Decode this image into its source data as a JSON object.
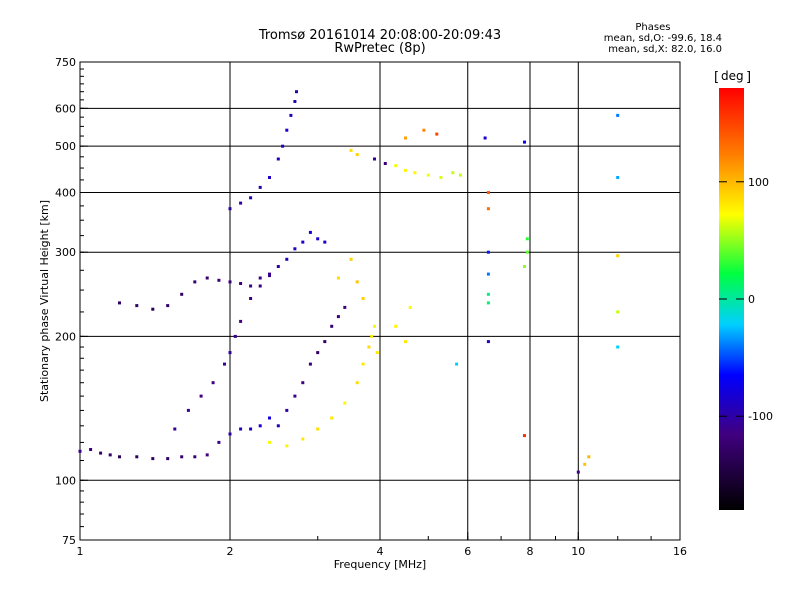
{
  "header": {
    "title_line1": "Tromsø 20161014 20:08:00-20:09:43",
    "title_line2": "RwPretec (8p)",
    "phases_title": "Phases",
    "phases_o": "mean, sd,O: -99.6, 18.4",
    "phases_x": "mean, sd,X:  82.0, 16.0"
  },
  "colorbar": {
    "label": "deg",
    "ticks": [
      {
        "value": 100,
        "label": "100"
      },
      {
        "value": 0,
        "label": "0"
      },
      {
        "value": -100,
        "label": "-100"
      }
    ],
    "range": [
      -180,
      180
    ]
  },
  "chart_data": {
    "type": "scatter",
    "title": "Tromsø 20161014 20:08:00-20:09:43",
    "subtitle": "RwPretec (8p)",
    "xlabel": "Frequency [MHz]",
    "ylabel": "Stationary phase Virtual Height [km]",
    "xscale": "log",
    "yscale": "log",
    "xlim": [
      1,
      16
    ],
    "ylim": [
      75,
      750
    ],
    "x_ticks": [
      1,
      2,
      4,
      6,
      8,
      10,
      16
    ],
    "x_tick_labels": [
      "1",
      "2",
      "4",
      "6",
      "8",
      "10",
      "16"
    ],
    "y_ticks": [
      75,
      100,
      200,
      300,
      400,
      500,
      600,
      750
    ],
    "y_tick_labels": [
      "75",
      "100",
      "200",
      "300",
      "400",
      "500",
      "600",
      "750"
    ],
    "x_grid": [
      2,
      4,
      6,
      8,
      10
    ],
    "y_grid": [
      100,
      200,
      300,
      400,
      500,
      600
    ],
    "color_scale": "phase [deg], -180 to 180",
    "series": [
      {
        "values": [
          [
            1.0,
            115,
            -110
          ],
          [
            1.05,
            116,
            -120
          ],
          [
            1.1,
            114,
            -125
          ],
          [
            1.15,
            113,
            -130
          ],
          [
            1.2,
            112,
            -135
          ],
          [
            1.3,
            112,
            -135
          ],
          [
            1.4,
            111,
            -130
          ],
          [
            1.5,
            111,
            -130
          ],
          [
            1.6,
            112,
            -125
          ],
          [
            1.7,
            112,
            -120
          ],
          [
            1.8,
            113,
            -115
          ],
          [
            1.9,
            120,
            -110
          ],
          [
            2.0,
            125,
            -100
          ],
          [
            2.1,
            128,
            -95
          ],
          [
            2.2,
            128,
            -90
          ],
          [
            2.3,
            130,
            -85
          ],
          [
            2.4,
            135,
            -80
          ]
        ]
      },
      {
        "values": [
          [
            1.55,
            128,
            -110
          ],
          [
            1.65,
            140,
            -110
          ],
          [
            1.75,
            150,
            -115
          ],
          [
            1.85,
            160,
            -115
          ],
          [
            1.95,
            175,
            -110
          ],
          [
            2.0,
            185,
            -105
          ],
          [
            2.05,
            200,
            -110
          ],
          [
            2.1,
            215,
            -115
          ],
          [
            2.2,
            240,
            -120
          ],
          [
            2.3,
            255,
            -120
          ],
          [
            2.4,
            268,
            -110
          ],
          [
            2.5,
            280,
            -100
          ],
          [
            2.6,
            290,
            -95
          ],
          [
            2.7,
            305,
            -90
          ],
          [
            2.8,
            315,
            -85
          ],
          [
            2.9,
            330,
            -80
          ],
          [
            3.0,
            320,
            -85
          ],
          [
            3.1,
            315,
            -85
          ]
        ]
      },
      {
        "values": [
          [
            1.2,
            235,
            -130
          ],
          [
            1.3,
            232,
            -130
          ],
          [
            1.4,
            228,
            -135
          ],
          [
            1.5,
            232,
            -130
          ],
          [
            1.6,
            245,
            -130
          ],
          [
            1.7,
            260,
            -125
          ],
          [
            1.8,
            265,
            -125
          ],
          [
            1.9,
            262,
            -120
          ],
          [
            2.0,
            260,
            -120
          ],
          [
            2.1,
            258,
            -120
          ],
          [
            2.2,
            255,
            -115
          ],
          [
            2.3,
            265,
            -110
          ],
          [
            2.4,
            270,
            -110
          ]
        ]
      },
      {
        "values": [
          [
            2.0,
            370,
            -100
          ],
          [
            2.1,
            380,
            -100
          ],
          [
            2.2,
            390,
            -95
          ],
          [
            2.3,
            410,
            -95
          ],
          [
            2.4,
            430,
            -90
          ],
          [
            2.5,
            470,
            -90
          ],
          [
            2.55,
            500,
            -85
          ],
          [
            2.6,
            540,
            -85
          ],
          [
            2.65,
            580,
            -90
          ],
          [
            2.7,
            620,
            -95
          ],
          [
            2.72,
            650,
            -95
          ]
        ]
      },
      {
        "values": [
          [
            2.5,
            130,
            -90
          ],
          [
            2.6,
            140,
            -100
          ],
          [
            2.7,
            150,
            -110
          ],
          [
            2.8,
            160,
            -115
          ],
          [
            2.9,
            175,
            -120
          ],
          [
            3.0,
            185,
            -130
          ],
          [
            3.1,
            195,
            -130
          ],
          [
            3.2,
            210,
            -125
          ],
          [
            3.3,
            220,
            -120
          ],
          [
            3.4,
            230,
            -115
          ]
        ]
      },
      {
        "values": [
          [
            2.4,
            120,
            70
          ],
          [
            2.6,
            118,
            75
          ],
          [
            2.8,
            122,
            80
          ],
          [
            3.0,
            128,
            85
          ],
          [
            3.2,
            135,
            80
          ],
          [
            3.4,
            145,
            75
          ],
          [
            3.6,
            160,
            85
          ],
          [
            3.7,
            175,
            80
          ],
          [
            3.8,
            190,
            85
          ],
          [
            3.85,
            200,
            80
          ],
          [
            3.9,
            210,
            75
          ],
          [
            3.95,
            185,
            80
          ]
        ]
      },
      {
        "values": [
          [
            3.3,
            265,
            85
          ],
          [
            3.5,
            290,
            90
          ],
          [
            3.6,
            260,
            95
          ],
          [
            3.7,
            240,
            90
          ],
          [
            4.3,
            210,
            75
          ],
          [
            4.5,
            195,
            80
          ],
          [
            4.6,
            230,
            70
          ]
        ]
      },
      {
        "values": [
          [
            3.5,
            490,
            85
          ],
          [
            3.6,
            480,
            90
          ],
          [
            3.9,
            470,
            -110
          ],
          [
            4.1,
            460,
            -120
          ],
          [
            4.3,
            455,
            70
          ],
          [
            4.5,
            445,
            75
          ],
          [
            4.7,
            440,
            75
          ],
          [
            5.0,
            435,
            70
          ],
          [
            5.3,
            430,
            65
          ],
          [
            5.6,
            440,
            60
          ],
          [
            5.8,
            435,
            60
          ]
        ]
      },
      {
        "values": [
          [
            4.5,
            520,
            110
          ],
          [
            4.9,
            540,
            120
          ],
          [
            5.2,
            530,
            150
          ],
          [
            6.5,
            520,
            -80
          ],
          [
            7.8,
            510,
            -70
          ],
          [
            6.6,
            400,
            140
          ],
          [
            6.6,
            370,
            130
          ],
          [
            7.9,
            320,
            30
          ],
          [
            7.9,
            300,
            40
          ],
          [
            7.8,
            280,
            50
          ],
          [
            6.6,
            300,
            -60
          ],
          [
            6.6,
            270,
            -40
          ],
          [
            6.6,
            245,
            5
          ],
          [
            6.6,
            235,
            10
          ],
          [
            6.6,
            195,
            -90
          ],
          [
            5.7,
            175,
            -20
          ],
          [
            7.8,
            124,
            160
          ],
          [
            10.5,
            112,
            100
          ],
          [
            10.3,
            108,
            95
          ],
          [
            10.0,
            104,
            -110
          ],
          [
            12.0,
            580,
            -40
          ],
          [
            12.0,
            430,
            -30
          ],
          [
            12.0,
            295,
            90
          ],
          [
            12.0,
            225,
            60
          ],
          [
            12.0,
            190,
            -20
          ]
        ]
      }
    ]
  }
}
